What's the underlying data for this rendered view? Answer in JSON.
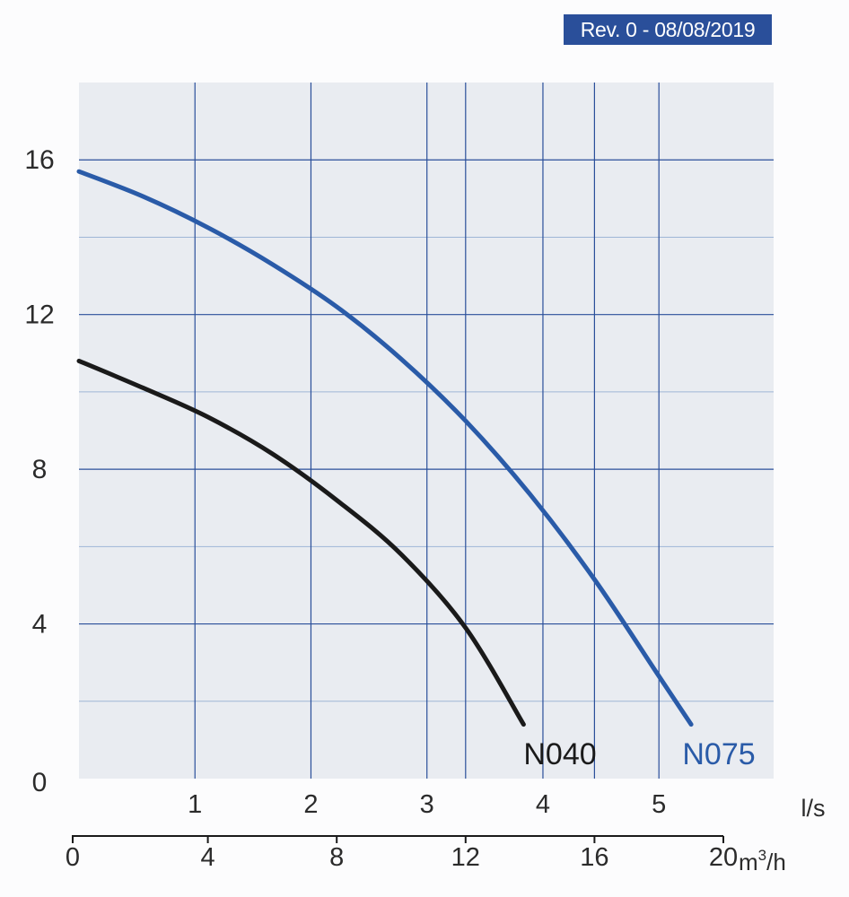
{
  "revision_label": "Rev. 0 - 08/08/2019",
  "colors": {
    "plot_background": "#e9ecf1",
    "grid_major": "#2a4f9a",
    "grid_minor": "#9fb6d6",
    "badge_background": "#2a4f9a",
    "badge_text": "#ffffff",
    "axis_text": "#2b2b2b"
  },
  "chart_data": {
    "type": "line",
    "title": "",
    "ylabel": "",
    "ylim": [
      0,
      18
    ],
    "yticks": [
      0,
      4,
      8,
      12,
      16
    ],
    "y_minor_gridlines": [
      2,
      6,
      10,
      14
    ],
    "grid": true,
    "x_axes": [
      {
        "unit": "l/s",
        "ticks": [
          1,
          2,
          3,
          4,
          5
        ],
        "lim": [
          0,
          6
        ]
      },
      {
        "unit_base": "m",
        "unit_sup": "3",
        "unit_tail": "/h",
        "ticks": [
          0,
          4,
          8,
          12,
          16,
          20
        ],
        "lim": [
          0,
          21.6
        ]
      }
    ],
    "series": [
      {
        "name": "N040",
        "color": "#1a1a1a",
        "label_color": "#1a1a1a",
        "x_unit": "m3/h",
        "points": [
          [
            0,
            10.8
          ],
          [
            2,
            10.1
          ],
          [
            4,
            9.35
          ],
          [
            6,
            8.4
          ],
          [
            8,
            7.2
          ],
          [
            10,
            5.8
          ],
          [
            12,
            3.9
          ],
          [
            13.8,
            1.4
          ]
        ]
      },
      {
        "name": "N075",
        "color": "#2a5ba8",
        "label_color": "#2a5ba8",
        "x_unit": "m3/h",
        "points": [
          [
            0,
            15.7
          ],
          [
            2,
            15.05
          ],
          [
            4,
            14.25
          ],
          [
            6,
            13.3
          ],
          [
            8,
            12.2
          ],
          [
            10,
            10.85
          ],
          [
            12,
            9.25
          ],
          [
            14,
            7.35
          ],
          [
            16,
            5.15
          ],
          [
            18,
            2.65
          ],
          [
            19,
            1.4
          ]
        ]
      }
    ]
  }
}
